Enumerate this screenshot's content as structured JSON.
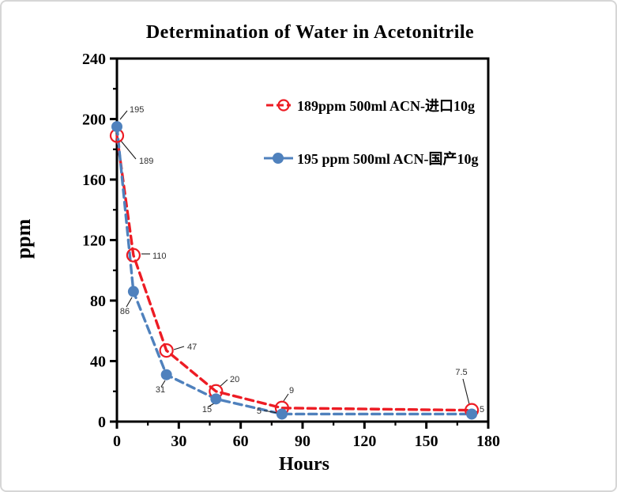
{
  "page": {
    "background": "#ffffff",
    "border_color": "#d6d6d6"
  },
  "chart_data": {
    "type": "line",
    "title": "Determination of Water in Acetonitrile",
    "xlabel": "Hours",
    "ylabel": "ppm",
    "xlim": [
      0,
      180
    ],
    "ylim": [
      0,
      240
    ],
    "x_major_ticks": [
      0,
      30,
      60,
      90,
      120,
      150,
      180
    ],
    "x_minor_step": 15,
    "y_major_ticks": [
      0,
      40,
      80,
      120,
      160,
      200,
      240
    ],
    "y_minor_step": 20,
    "grid": false,
    "legend_position": "inside-upper-right",
    "series": [
      {
        "name": "189ppm  500ml ACN-进口10g",
        "color": "#ed1c24",
        "line_style": "dashed",
        "marker": "open-circle",
        "x": [
          0,
          8,
          24,
          48,
          80,
          172
        ],
        "values": [
          189,
          110,
          47,
          20,
          9,
          7.5
        ],
        "point_labels": [
          "189",
          "110",
          "47",
          "20",
          "9",
          "7.5"
        ]
      },
      {
        "name": "195 ppm 500ml ACN-国产10g",
        "color": "#4f81bd",
        "line_style": "dashed",
        "marker": "filled-circle",
        "x": [
          0,
          8,
          24,
          48,
          80,
          172
        ],
        "values": [
          195,
          86,
          31,
          15,
          5,
          5
        ],
        "point_labels": [
          "195",
          "86",
          "31",
          "15",
          "5",
          "5"
        ]
      }
    ]
  }
}
